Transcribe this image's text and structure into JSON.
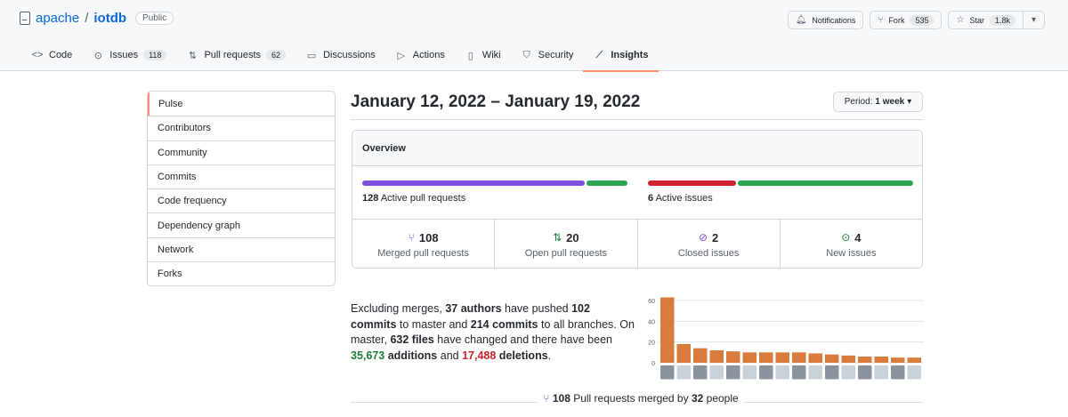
{
  "repo": {
    "owner": "apache",
    "separator": "/",
    "name": "iotdb",
    "visibility": "Public"
  },
  "actions": {
    "notifications": {
      "label": "Notifications",
      "icon": "bell-icon"
    },
    "fork": {
      "label": "Fork",
      "count": "535",
      "icon": "fork-icon"
    },
    "star": {
      "label": "Star",
      "count": "1.8k",
      "icon": "star-icon"
    }
  },
  "tabs": [
    {
      "label": "Code",
      "icon": "code-icon"
    },
    {
      "label": "Issues",
      "count": "118",
      "icon": "issue-icon"
    },
    {
      "label": "Pull requests",
      "count": "62",
      "icon": "pull-request-icon"
    },
    {
      "label": "Discussions",
      "icon": "discussion-icon"
    },
    {
      "label": "Actions",
      "icon": "play-icon"
    },
    {
      "label": "Wiki",
      "icon": "book-icon"
    },
    {
      "label": "Security",
      "icon": "shield-icon"
    },
    {
      "label": "Insights",
      "icon": "graph-icon",
      "selected": true
    }
  ],
  "sidebar": {
    "items": [
      {
        "label": "Pulse",
        "selected": true
      },
      {
        "label": "Contributors"
      },
      {
        "label": "Community"
      },
      {
        "label": "Commits"
      },
      {
        "label": "Code frequency"
      },
      {
        "label": "Dependency graph"
      },
      {
        "label": "Network"
      },
      {
        "label": "Forks"
      }
    ]
  },
  "period": {
    "title": "January 12, 2022 – January 19, 2022",
    "button_prefix": "Period:",
    "button_value": "1 week"
  },
  "overview": {
    "heading": "Overview",
    "pull_requests": {
      "count": "128",
      "label": "Active pull requests",
      "merged": 108,
      "open": 20
    },
    "issues": {
      "count": "6",
      "label": "Active issues",
      "closed": 2,
      "new": 4
    },
    "stats": [
      {
        "value": "108",
        "label": "Merged pull requests",
        "icon": "merged-icon",
        "color": "#8250df"
      },
      {
        "value": "20",
        "label": "Open pull requests",
        "icon": "pull-request-open-icon",
        "color": "#1a7f37"
      },
      {
        "value": "2",
        "label": "Closed issues",
        "icon": "issue-closed-icon",
        "color": "#8250df"
      },
      {
        "value": "4",
        "label": "New issues",
        "icon": "issue-opened-icon",
        "color": "#1a7f37"
      }
    ]
  },
  "summary": {
    "t1": "Excluding merges, ",
    "authors": "37 authors",
    "t2": " have pushed ",
    "commits_master": "102 commits",
    "t3": " to master and ",
    "commits_all": "214 commits",
    "t4": " to all branches. On master, ",
    "files": "632 files",
    "t5": " have changed and there have been ",
    "additions_num": "35,673",
    "additions_word": " additions",
    "t6": " and ",
    "deletions_num": "17,488",
    "deletions_word": " deletions",
    "t7": "."
  },
  "chart_data": {
    "type": "bar",
    "y_ticks": [
      "60",
      "40",
      "20",
      "0"
    ],
    "ylim": [
      0,
      60
    ],
    "values": [
      63,
      18,
      14,
      12,
      11,
      10,
      10,
      10,
      10,
      9,
      8,
      7,
      6,
      6,
      5,
      5
    ],
    "bar_color": "#d97c3b",
    "xlabel": "",
    "ylabel": ""
  },
  "merged_summary": {
    "count": "108",
    "t1": " Pull requests merged by ",
    "people": "32",
    "t2": " people"
  },
  "colors": {
    "merged": "#8250df",
    "open": "#2da44e",
    "closed": "#cf222e",
    "accent": "#fd8c73"
  }
}
